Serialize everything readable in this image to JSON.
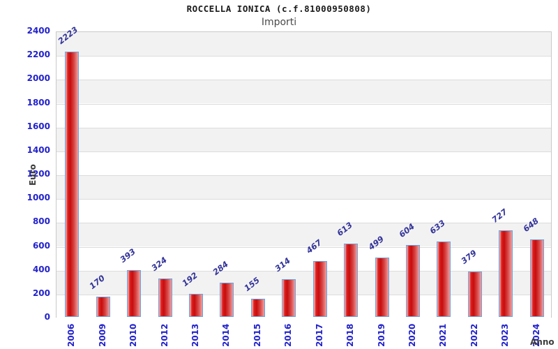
{
  "header": {
    "title": "ROCCELLA IONICA (c.f.81000950808)",
    "subtitle": "Importi"
  },
  "chart_data": {
    "type": "bar",
    "title": "ROCCELLA IONICA (c.f.81000950808)",
    "subtitle": "Importi",
    "xlabel": "Anno",
    "ylabel": "Euro",
    "categories": [
      "2006",
      "2009",
      "2010",
      "2012",
      "2013",
      "2014",
      "2015",
      "2016",
      "2017",
      "2018",
      "2019",
      "2020",
      "2021",
      "2022",
      "2023",
      "2024"
    ],
    "values": [
      2223,
      170,
      393,
      324,
      192,
      284,
      155,
      314,
      467,
      613,
      499,
      604,
      633,
      379,
      727,
      648
    ],
    "ylim": [
      0,
      2400
    ],
    "ytick_step": 200,
    "yticks": [
      0,
      200,
      400,
      600,
      800,
      1000,
      1200,
      1400,
      1600,
      1800,
      2000,
      2200,
      2400
    ],
    "grid": "horizontal-bands",
    "legend": "none",
    "colors": {
      "bar_fill_dark": "#c60d0d",
      "bar_fill_light": "#f5bcbc",
      "bar_border": "#66a3e0",
      "tick_label": "#2222cc",
      "value_label": "#333399",
      "axis_title": "#3c3c3c",
      "band_gray": "#f2f2f2",
      "band_white": "#ffffff",
      "grid_line": "#dcdcdc",
      "plot_border": "#c9c9c9"
    }
  }
}
